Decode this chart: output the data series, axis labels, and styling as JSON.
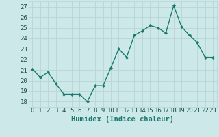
{
  "x": [
    0,
    1,
    2,
    3,
    4,
    5,
    6,
    7,
    8,
    9,
    10,
    11,
    12,
    13,
    14,
    15,
    16,
    17,
    18,
    19,
    20,
    21,
    22,
    23
  ],
  "y": [
    21.1,
    20.3,
    20.8,
    19.7,
    18.7,
    18.7,
    18.7,
    18.0,
    19.5,
    19.5,
    21.2,
    23.0,
    22.2,
    24.3,
    24.7,
    25.2,
    25.0,
    24.5,
    27.1,
    25.1,
    24.3,
    23.6,
    22.2,
    22.2
  ],
  "line_color": "#1a7a6e",
  "marker": "D",
  "marker_size": 2.2,
  "bg_color": "#cce8e8",
  "grid_color": "#b8d4d4",
  "xlabel": "Humidex (Indice chaleur)",
  "ylabel": "",
  "xlim": [
    -0.5,
    23.5
  ],
  "ylim": [
    17.5,
    27.5
  ],
  "yticks": [
    18,
    19,
    20,
    21,
    22,
    23,
    24,
    25,
    26,
    27
  ],
  "xticks": [
    0,
    1,
    2,
    3,
    4,
    5,
    6,
    7,
    8,
    9,
    10,
    11,
    12,
    13,
    14,
    15,
    16,
    17,
    18,
    19,
    20,
    21,
    22,
    23
  ],
  "tick_label_fontsize": 6.5,
  "xlabel_fontsize": 7.5,
  "linewidth": 1.0
}
